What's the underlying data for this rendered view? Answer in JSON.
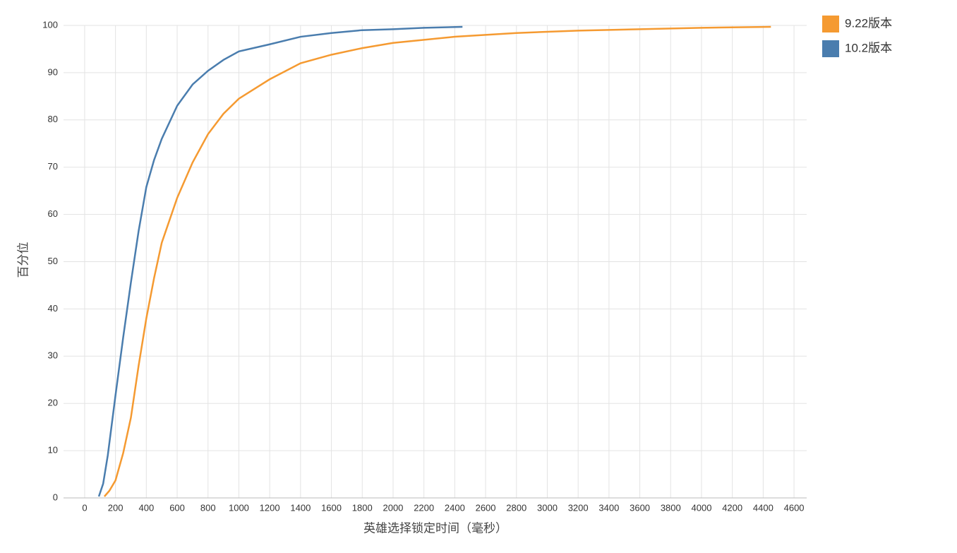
{
  "chart_data": {
    "type": "line",
    "x_label": "英雄选择锁定时间（毫秒）",
    "y_label": "百分位",
    "xlim": [
      -137,
      4682
    ],
    "ylim": [
      0,
      100
    ],
    "xticks": [
      0,
      200,
      400,
      600,
      800,
      1000,
      1200,
      1400,
      1600,
      1800,
      2000,
      2200,
      2400,
      2600,
      2800,
      3000,
      3200,
      3400,
      3600,
      3800,
      4000,
      4200,
      4400,
      4600
    ],
    "yticks": [
      0,
      10,
      20,
      30,
      40,
      50,
      60,
      70,
      80,
      90,
      100
    ],
    "grid": true,
    "legend": "top-right",
    "series": [
      {
        "name": "9.22版本",
        "color": "#f59a31",
        "x": [
          128,
          160,
          200,
          250,
          300,
          350,
          400,
          450,
          500,
          600,
          700,
          800,
          900,
          1000,
          1200,
          1400,
          1600,
          1800,
          2000,
          2400,
          2800,
          3200,
          3600,
          4000,
          4450
        ],
        "values": [
          0.3,
          1.5,
          3.7,
          9.5,
          17,
          28,
          38,
          46.5,
          54,
          63.5,
          71,
          77,
          81.3,
          84.5,
          88.6,
          92,
          93.8,
          95.2,
          96.3,
          97.6,
          98.4,
          98.9,
          99.2,
          99.5,
          99.7
        ]
      },
      {
        "name": "10.2版本",
        "color": "#4a7dae",
        "x": [
          92,
          120,
          150,
          200,
          250,
          300,
          350,
          400,
          450,
          500,
          600,
          700,
          800,
          900,
          1000,
          1200,
          1400,
          1600,
          1800,
          2000,
          2200,
          2450
        ],
        "values": [
          0.3,
          3,
          9,
          21.7,
          34,
          45.6,
          56.5,
          65.8,
          71.5,
          76,
          83,
          87.5,
          90.4,
          92.7,
          94.5,
          96,
          97.6,
          98.4,
          99,
          99.2,
          99.5,
          99.7
        ]
      }
    ]
  }
}
